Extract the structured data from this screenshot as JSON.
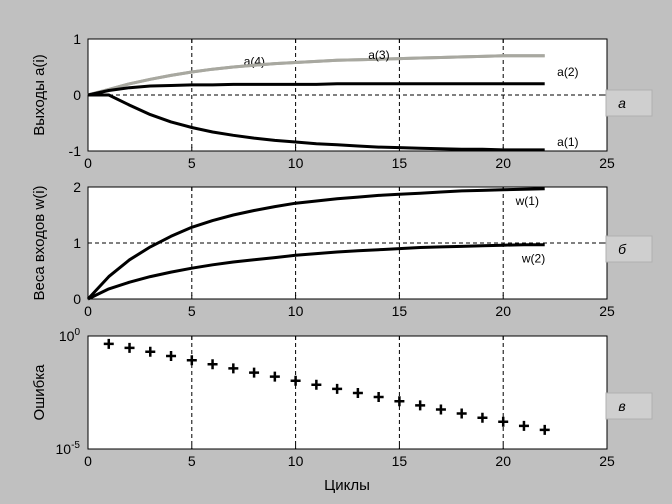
{
  "xlabel": "Циклы",
  "chart_data": [
    {
      "type": "line",
      "ylabel": "Выходы a(i)",
      "badge": "a",
      "xlim": [
        0,
        25
      ],
      "ylim": [
        -1,
        1
      ],
      "xticks": [
        "0",
        "5",
        "10",
        "15",
        "20",
        "25"
      ],
      "yticks": [
        "-1",
        "0",
        "1"
      ],
      "grid": true,
      "x": [
        0,
        1,
        2,
        3,
        4,
        5,
        6,
        7,
        8,
        9,
        10,
        11,
        12,
        13,
        14,
        15,
        16,
        17,
        18,
        19,
        20,
        21,
        22
      ],
      "series": [
        {
          "name": "a(4)",
          "color": "#a8a8a0",
          "values": [
            0,
            0.1,
            0.2,
            0.28,
            0.35,
            0.41,
            0.46,
            0.5,
            0.53,
            0.56,
            0.58,
            0.6,
            0.62,
            0.63,
            0.64,
            0.65,
            0.66,
            0.67,
            0.68,
            0.69,
            0.7,
            0.7,
            0.7
          ]
        },
        {
          "name": "a(3)",
          "color": "#a8a8a0",
          "values": [
            0,
            0.1,
            0.2,
            0.28,
            0.35,
            0.41,
            0.46,
            0.5,
            0.53,
            0.56,
            0.58,
            0.6,
            0.62,
            0.63,
            0.64,
            0.65,
            0.66,
            0.67,
            0.68,
            0.69,
            0.7,
            0.7,
            0.7
          ]
        },
        {
          "name": "a(2)",
          "color": "#000000",
          "values": [
            0,
            0.08,
            0.13,
            0.16,
            0.17,
            0.18,
            0.18,
            0.19,
            0.19,
            0.19,
            0.19,
            0.19,
            0.2,
            0.2,
            0.2,
            0.2,
            0.2,
            0.2,
            0.2,
            0.2,
            0.2,
            0.2,
            0.2
          ]
        },
        {
          "name": "a(1)",
          "color": "#000000",
          "values": [
            0,
            0,
            -0.18,
            -0.35,
            -0.48,
            -0.58,
            -0.66,
            -0.72,
            -0.77,
            -0.81,
            -0.84,
            -0.87,
            -0.89,
            -0.91,
            -0.93,
            -0.94,
            -0.95,
            -0.96,
            -0.97,
            -0.97,
            -0.98,
            -0.98,
            -0.98
          ]
        }
      ]
    },
    {
      "type": "line",
      "ylabel": "Веса входов w(i)",
      "badge": "б",
      "xlim": [
        0,
        25
      ],
      "ylim": [
        0,
        2
      ],
      "xticks": [
        "0",
        "5",
        "10",
        "15",
        "20",
        "25"
      ],
      "yticks": [
        "0",
        "1",
        "2"
      ],
      "grid": true,
      "x": [
        0,
        1,
        2,
        3,
        4,
        5,
        6,
        7,
        8,
        9,
        10,
        11,
        12,
        13,
        14,
        15,
        16,
        17,
        18,
        19,
        20,
        21,
        22
      ],
      "series": [
        {
          "name": "w(1)",
          "color": "#000000",
          "values": [
            0,
            0.4,
            0.7,
            0.93,
            1.12,
            1.28,
            1.4,
            1.5,
            1.58,
            1.65,
            1.71,
            1.75,
            1.79,
            1.82,
            1.85,
            1.87,
            1.89,
            1.91,
            1.93,
            1.94,
            1.95,
            1.96,
            1.97
          ]
        },
        {
          "name": "w(2)",
          "color": "#000000",
          "values": [
            0,
            0.18,
            0.3,
            0.4,
            0.48,
            0.55,
            0.61,
            0.66,
            0.7,
            0.74,
            0.78,
            0.81,
            0.84,
            0.86,
            0.88,
            0.9,
            0.92,
            0.93,
            0.94,
            0.95,
            0.96,
            0.97,
            0.97
          ]
        }
      ]
    },
    {
      "type": "scatter",
      "ylabel": "Ошибка",
      "badge": "в",
      "xlim": [
        0,
        25
      ],
      "ylim": [
        1e-05,
        1
      ],
      "yscale": "log",
      "xticks": [
        "0",
        "5",
        "10",
        "15",
        "20",
        "25"
      ],
      "yticks": [
        {
          "base": "10",
          "exp": "0"
        },
        {
          "base": "10",
          "exp": "-5"
        }
      ],
      "grid": true,
      "x": [
        1,
        2,
        3,
        4,
        5,
        6,
        7,
        8,
        9,
        10,
        11,
        12,
        13,
        14,
        15,
        16,
        17,
        18,
        19,
        20,
        21,
        22
      ],
      "values": [
        0.45,
        0.3,
        0.2,
        0.13,
        0.085,
        0.056,
        0.037,
        0.024,
        0.016,
        0.0105,
        0.007,
        0.0046,
        0.003,
        0.002,
        0.0013,
        0.00085,
        0.00056,
        0.00037,
        0.00024,
        0.00016,
        0.000105,
        7e-05
      ]
    }
  ]
}
